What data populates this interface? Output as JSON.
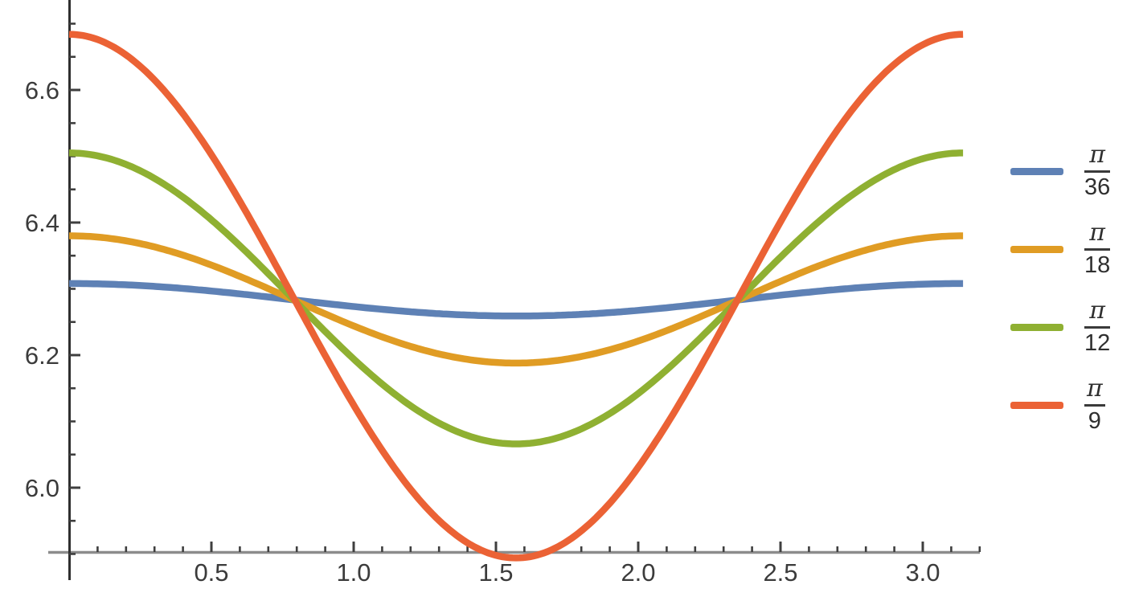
{
  "chart_data": {
    "type": "line",
    "title": "",
    "xlabel": "",
    "ylabel": "",
    "grid": false,
    "legend_position": "right-outside",
    "background": "#ffffff",
    "axis": {
      "x_line_color": "#8c8c8c",
      "y_line_color": "#2f2f2f",
      "tick_color": "#3f3f3f",
      "tick_label_color": "#3b3b3b",
      "x_range_shown": [
        0,
        3.2
      ],
      "y_range_shown": [
        5.9,
        6.74
      ],
      "x_ticks_labeled": [
        "0.5",
        "1.0",
        "1.5",
        "2.0",
        "2.5",
        "3.0"
      ],
      "x_tick_values": [
        0.5,
        1.0,
        1.5,
        2.0,
        2.5,
        3.0
      ],
      "x_minor_step": 0.1,
      "y_ticks_labeled": [
        "6.0",
        "6.2",
        "6.4",
        "6.6"
      ],
      "y_tick_values": [
        6.0,
        6.2,
        6.4,
        6.6
      ],
      "y_minor_step": 0.05,
      "y_minor_min": 5.9,
      "y_minor_max": 6.7
    },
    "model": "y(x) = center + amplitude*cos(2*x) for x in [0, pi]",
    "x_domain": [
      0,
      3.14159
    ],
    "series": [
      {
        "id": "pi-36",
        "name": "π/36",
        "legend_numerator": "π",
        "legend_denominator": "36",
        "color": "#5e81b5",
        "center": 6.2835,
        "amplitude": 0.0245,
        "points": {
          "x": [
            0,
            0.393,
            0.785,
            1.178,
            1.571,
            1.963,
            2.356,
            2.749,
            3.142
          ],
          "y": [
            6.308,
            6.301,
            6.284,
            6.266,
            6.259,
            6.266,
            6.284,
            6.301,
            6.308
          ]
        }
      },
      {
        "id": "pi-18",
        "name": "π/18",
        "legend_numerator": "π",
        "legend_denominator": "18",
        "color": "#e09c24",
        "center": 6.284,
        "amplitude": 0.096,
        "points": {
          "x": [
            0,
            0.393,
            0.785,
            1.178,
            1.571,
            1.963,
            2.356,
            2.749,
            3.142
          ],
          "y": [
            6.38,
            6.352,
            6.284,
            6.216,
            6.188,
            6.216,
            6.284,
            6.352,
            6.38
          ]
        }
      },
      {
        "id": "pi-12",
        "name": "π/12",
        "legend_numerator": "π",
        "legend_denominator": "12",
        "color": "#8fb032",
        "center": 6.2855,
        "amplitude": 0.2195,
        "points": {
          "x": [
            0,
            0.393,
            0.785,
            1.178,
            1.571,
            1.963,
            2.356,
            2.749,
            3.142
          ],
          "y": [
            6.505,
            6.441,
            6.286,
            6.13,
            6.066,
            6.13,
            6.286,
            6.441,
            6.505
          ]
        }
      },
      {
        "id": "pi-9",
        "name": "π/9",
        "legend_numerator": "π",
        "legend_denominator": "9",
        "color": "#eb6235",
        "center": 6.289,
        "amplitude": 0.395,
        "points": {
          "x": [
            0,
            0.393,
            0.785,
            1.178,
            1.571,
            1.963,
            2.356,
            2.749,
            3.142
          ],
          "y": [
            6.684,
            6.568,
            6.289,
            6.01,
            5.894,
            6.01,
            6.289,
            6.568,
            6.684
          ]
        }
      }
    ]
  }
}
